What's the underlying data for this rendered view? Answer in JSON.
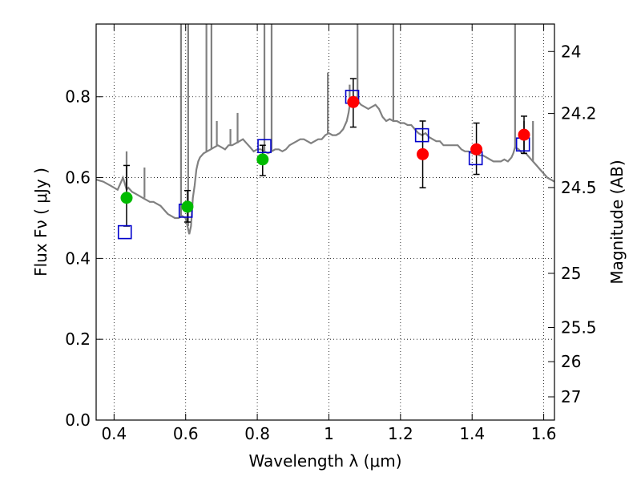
{
  "chart_data": {
    "type": "scatter",
    "xlabel": "Wavelength  λ (μm)",
    "ylabel": "Flux  Fν  ( μJy )",
    "y2label": "Magnitude (AB)",
    "xlim": [
      0.35,
      1.63
    ],
    "ylim": [
      0.0,
      0.98
    ],
    "xticks": [
      0.4,
      0.6,
      0.8,
      1.0,
      1.2,
      1.4,
      1.6
    ],
    "xtick_labels": [
      "0.4",
      "0.6",
      "0.8",
      "1",
      "1.2",
      "1.4",
      "1.6"
    ],
    "yticks": [
      0.0,
      0.2,
      0.4,
      0.6,
      0.8
    ],
    "ytick_labels": [
      "0.0",
      "0.2",
      "0.4",
      "0.6",
      "0.8"
    ],
    "y2ticks": [
      24,
      24.2,
      24.5,
      25,
      25.5,
      26,
      27
    ],
    "y2tick_labels": [
      "24",
      "24.2",
      "24.5",
      "25",
      "25.5",
      "26",
      "27"
    ],
    "grid": true,
    "colors": {
      "spectrum": "#808080",
      "green": "#00bb00",
      "red": "#ff0000",
      "square": "#0000cc",
      "errorbar": "#000000"
    },
    "series": [
      {
        "kind": "spectrum",
        "x": [
          0.35,
          0.37,
          0.39,
          0.41,
          0.425,
          0.43,
          0.435,
          0.44,
          0.45,
          0.46,
          0.47,
          0.48,
          0.49,
          0.5,
          0.51,
          0.52,
          0.53,
          0.54,
          0.55,
          0.56,
          0.57,
          0.58,
          0.59,
          0.6,
          0.605,
          0.61,
          0.615,
          0.62,
          0.625,
          0.63,
          0.635,
          0.64,
          0.65,
          0.66,
          0.67,
          0.68,
          0.69,
          0.7,
          0.71,
          0.72,
          0.73,
          0.74,
          0.75,
          0.76,
          0.77,
          0.78,
          0.79,
          0.8,
          0.81,
          0.82,
          0.83,
          0.84,
          0.85,
          0.86,
          0.87,
          0.88,
          0.89,
          0.9,
          0.91,
          0.92,
          0.93,
          0.94,
          0.95,
          0.96,
          0.97,
          0.98,
          0.99,
          1.0,
          1.01,
          1.02,
          1.03,
          1.04,
          1.05,
          1.055,
          1.06,
          1.07,
          1.08,
          1.09,
          1.1,
          1.11,
          1.12,
          1.13,
          1.14,
          1.15,
          1.16,
          1.17,
          1.18,
          1.19,
          1.2,
          1.21,
          1.22,
          1.23,
          1.24,
          1.25,
          1.26,
          1.27,
          1.28,
          1.29,
          1.3,
          1.31,
          1.32,
          1.33,
          1.34,
          1.35,
          1.36,
          1.37,
          1.38,
          1.39,
          1.4,
          1.41,
          1.42,
          1.43,
          1.44,
          1.45,
          1.46,
          1.47,
          1.48,
          1.49,
          1.5,
          1.51,
          1.515,
          1.52,
          1.53,
          1.54,
          1.55,
          1.56,
          1.57,
          1.58,
          1.59,
          1.6,
          1.61,
          1.62,
          1.63
        ],
        "y": [
          0.595,
          0.59,
          0.58,
          0.57,
          0.6,
          0.585,
          0.57,
          0.575,
          0.565,
          0.56,
          0.555,
          0.55,
          0.545,
          0.54,
          0.54,
          0.535,
          0.53,
          0.52,
          0.51,
          0.505,
          0.5,
          0.5,
          0.505,
          0.5,
          0.48,
          0.46,
          0.48,
          0.55,
          0.58,
          0.62,
          0.64,
          0.65,
          0.66,
          0.665,
          0.67,
          0.675,
          0.68,
          0.675,
          0.67,
          0.68,
          0.68,
          0.685,
          0.69,
          0.695,
          0.685,
          0.675,
          0.665,
          0.67,
          0.67,
          0.665,
          0.66,
          0.665,
          0.67,
          0.67,
          0.665,
          0.67,
          0.68,
          0.685,
          0.69,
          0.695,
          0.695,
          0.69,
          0.685,
          0.69,
          0.695,
          0.695,
          0.705,
          0.71,
          0.705,
          0.705,
          0.71,
          0.72,
          0.74,
          0.76,
          0.79,
          0.8,
          0.79,
          0.78,
          0.775,
          0.77,
          0.775,
          0.78,
          0.77,
          0.75,
          0.74,
          0.745,
          0.74,
          0.74,
          0.735,
          0.735,
          0.73,
          0.73,
          0.72,
          0.71,
          0.705,
          0.71,
          0.7,
          0.695,
          0.69,
          0.69,
          0.68,
          0.68,
          0.68,
          0.68,
          0.68,
          0.67,
          0.665,
          0.665,
          0.66,
          0.66,
          0.655,
          0.655,
          0.65,
          0.645,
          0.64,
          0.64,
          0.64,
          0.645,
          0.64,
          0.65,
          0.66,
          0.675,
          0.67,
          0.66,
          0.66,
          0.65,
          0.64,
          0.63,
          0.62,
          0.61,
          0.6,
          0.595,
          0.59
        ]
      },
      {
        "kind": "spectrum-lines",
        "lines": [
          [
            0.435,
            0.665
          ],
          [
            0.485,
            0.625
          ],
          [
            0.587,
            1.2
          ],
          [
            0.607,
            1.2
          ],
          [
            0.658,
            1.2
          ],
          [
            0.672,
            1.2
          ],
          [
            0.687,
            0.74
          ],
          [
            0.725,
            0.72
          ],
          [
            0.745,
            0.76
          ],
          [
            0.82,
            1.2
          ],
          [
            0.84,
            1.2
          ],
          [
            0.997,
            0.86
          ],
          [
            1.058,
            0.83
          ],
          [
            1.08,
            1.2
          ],
          [
            1.18,
            1.2
          ],
          [
            1.52,
            1.2
          ],
          [
            1.545,
            0.74
          ],
          [
            1.57,
            0.74
          ]
        ]
      },
      {
        "kind": "green-points",
        "x": [
          0.435,
          0.605,
          0.815
        ],
        "y": [
          0.55,
          0.528,
          0.645
        ],
        "yerr_lo": [
          0.48,
          0.49,
          0.605
        ],
        "yerr_hi": [
          0.63,
          0.568,
          0.68
        ]
      },
      {
        "kind": "red-points",
        "x": [
          1.068,
          1.262,
          1.412,
          1.545
        ],
        "y": [
          0.787,
          0.658,
          0.67,
          0.706
        ],
        "yerr_lo": [
          0.725,
          0.575,
          0.608,
          0.66
        ],
        "yerr_hi": [
          0.845,
          0.74,
          0.735,
          0.752
        ]
      },
      {
        "kind": "squares",
        "x": [
          0.43,
          0.6,
          0.82,
          1.065,
          1.26,
          1.41,
          1.542
        ],
        "y": [
          0.465,
          0.518,
          0.678,
          0.8,
          0.705,
          0.648,
          0.682
        ]
      }
    ]
  }
}
